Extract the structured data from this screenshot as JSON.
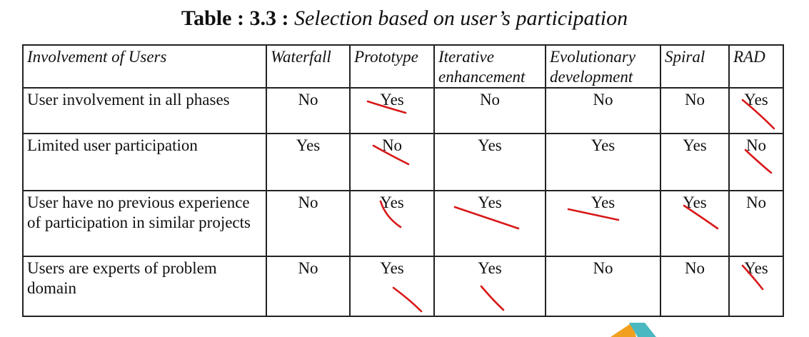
{
  "caption": {
    "number": "Table : 3.3 :",
    "title": "Selection based on user’s participation"
  },
  "table": {
    "headers": [
      "Involvement of Users",
      "Waterfall",
      "Prototype",
      "Iterative enhancement",
      "Evolutionary development",
      "Spiral",
      "RAD"
    ],
    "rows": [
      {
        "label": "User involvement in all phases",
        "values": [
          "No",
          "Yes",
          "No",
          "No",
          "No",
          "Yes"
        ]
      },
      {
        "label": "Limited user participation",
        "values": [
          "Yes",
          "No",
          "Yes",
          "Yes",
          "Yes",
          "No"
        ]
      },
      {
        "label": "User have no previous experience of participation in similar projects",
        "values": [
          "No",
          "Yes",
          "Yes",
          "Yes",
          "Yes",
          "No"
        ]
      },
      {
        "label": "Users are experts of problem domain",
        "values": [
          "No",
          "Yes",
          "Yes",
          "No",
          "No",
          "Yes"
        ]
      }
    ]
  },
  "annotation_color": "#d81818",
  "logo_colors": [
    "#f0a020",
    "#4ab8c0"
  ]
}
